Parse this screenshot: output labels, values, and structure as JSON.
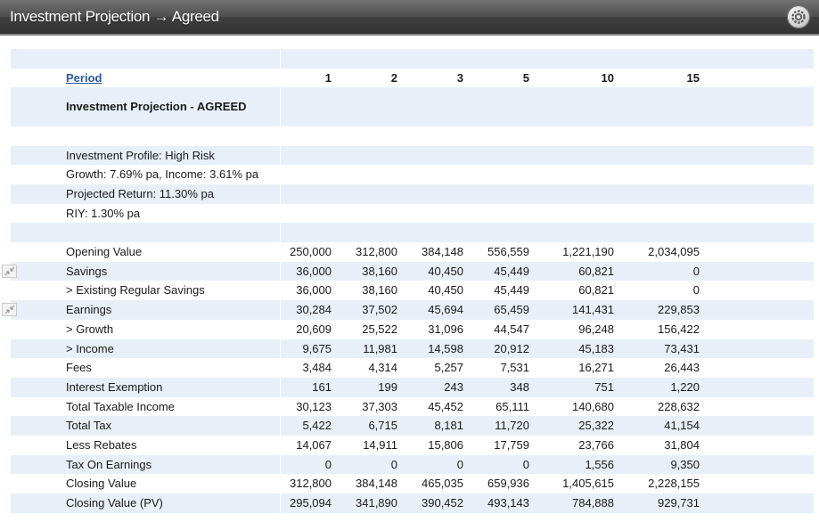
{
  "window": {
    "title": "Investment Projection → Agreed",
    "settings_icon": "gear-icon"
  },
  "table": {
    "period_label": "Period",
    "periods": [
      "1",
      "2",
      "3",
      "5",
      "10",
      "15"
    ],
    "section_title": "Investment Projection - AGREED",
    "profile_lines": [
      "Investment Profile: High Risk",
      "Growth: 7.69% pa, Income: 3.61% pa",
      "Projected Return: 11.30% pa",
      "RIY: 1.30% pa"
    ],
    "rows": [
      {
        "label": "Opening Value",
        "values": [
          "250,000",
          "312,800",
          "384,148",
          "556,559",
          "1,221,190",
          "2,034,095"
        ]
      },
      {
        "label": "Savings",
        "expand_icon": "expand-icon",
        "values": [
          "36,000",
          "38,160",
          "40,450",
          "45,449",
          "60,821",
          "0"
        ]
      },
      {
        "label": "> Existing Regular Savings",
        "values": [
          "36,000",
          "38,160",
          "40,450",
          "45,449",
          "60,821",
          "0"
        ]
      },
      {
        "label": "Earnings",
        "expand_icon": "expand-icon",
        "values": [
          "30,284",
          "37,502",
          "45,694",
          "65,459",
          "141,431",
          "229,853"
        ]
      },
      {
        "label": "> Growth",
        "values": [
          "20,609",
          "25,522",
          "31,096",
          "44,547",
          "96,248",
          "156,422"
        ]
      },
      {
        "label": "> Income",
        "values": [
          "9,675",
          "11,981",
          "14,598",
          "20,912",
          "45,183",
          "73,431"
        ]
      },
      {
        "label": "Fees",
        "values": [
          "3,484",
          "4,314",
          "5,257",
          "7,531",
          "16,271",
          "26,443"
        ]
      },
      {
        "label": "Interest Exemption",
        "values": [
          "161",
          "199",
          "243",
          "348",
          "751",
          "1,220"
        ]
      },
      {
        "label": "Total Taxable Income",
        "values": [
          "30,123",
          "37,303",
          "45,452",
          "65,111",
          "140,680",
          "228,632"
        ]
      },
      {
        "label": "Total Tax",
        "values": [
          "5,422",
          "6,715",
          "8,181",
          "11,720",
          "25,322",
          "41,154"
        ]
      },
      {
        "label": "Less Rebates",
        "values": [
          "14,067",
          "14,911",
          "15,806",
          "17,759",
          "23,766",
          "31,804"
        ]
      },
      {
        "label": "Tax On Earnings",
        "values": [
          "0",
          "0",
          "0",
          "0",
          "1,556",
          "9,350"
        ]
      },
      {
        "label": "Closing Value",
        "values": [
          "312,800",
          "384,148",
          "465,035",
          "659,936",
          "1,405,615",
          "2,228,155"
        ]
      },
      {
        "label": "Closing Value (PV)",
        "values": [
          "295,094",
          "341,890",
          "390,452",
          "493,143",
          "784,888",
          "929,731"
        ]
      }
    ]
  },
  "colors": {
    "title_bar": "#3f3f3f",
    "band": "#e8eff8",
    "link": "#2a5b9f"
  }
}
